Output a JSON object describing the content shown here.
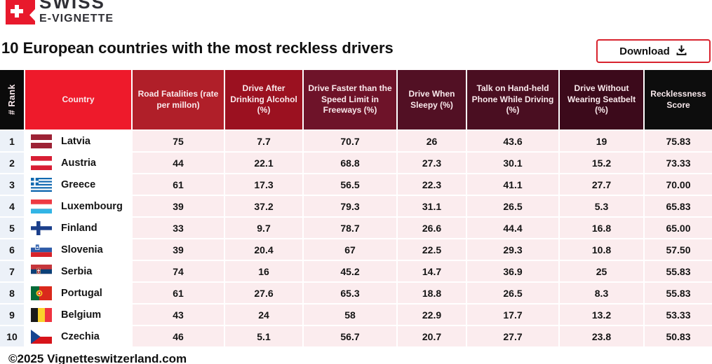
{
  "logo": {
    "line1": "SWISS",
    "line2": "E-VIGNETTE"
  },
  "page_title": "10 European countries with the most reckless drivers",
  "download": {
    "label": "Download"
  },
  "footer": {
    "copyright": "©2025 Vignetteswitzerland.com"
  },
  "colors": {
    "accent_red": "#ee1a2b",
    "button_border": "#d8232e",
    "rank_cell_bg": "#ecf1f8",
    "data_cell_bg": "#fbecee"
  },
  "chart_data": {
    "type": "table",
    "title": "10 European countries with the most reckless drivers",
    "columns": [
      {
        "id": "rank",
        "label": "# Rank",
        "bg": "#0b0b0b"
      },
      {
        "id": "country",
        "label": "Country",
        "bg": "#ee1a2b"
      },
      {
        "id": "fatalities",
        "label": "Road Fatalities (rate per millon)",
        "bg": "#b01f29"
      },
      {
        "id": "alcohol",
        "label": "Drive After Drinking Alcohol (%)",
        "bg": "#9b1120"
      },
      {
        "id": "speed",
        "label": "Drive Faster than the Speed Limit in Freeways (%)",
        "bg": "#6e1329"
      },
      {
        "id": "sleepy",
        "label": "Drive When Sleepy (%)",
        "bg": "#521024"
      },
      {
        "id": "phone",
        "label": "Talk on Hand-held Phone While Driving (%)",
        "bg": "#4a0e21"
      },
      {
        "id": "seatbelt",
        "label": "Drive Without Wearing Seatbelt (%)",
        "bg": "#3c0a1b"
      },
      {
        "id": "score",
        "label": "Recklessness Score",
        "bg": "#0d0d0d"
      }
    ],
    "rows": [
      {
        "rank": "1",
        "country": "Latvia",
        "flag": "lv",
        "values": [
          "75",
          "7.7",
          "70.7",
          "26",
          "43.6",
          "19",
          "75.83"
        ]
      },
      {
        "rank": "2",
        "country": "Austria",
        "flag": "at",
        "values": [
          "44",
          "22.1",
          "68.8",
          "27.3",
          "30.1",
          "15.2",
          "73.33"
        ]
      },
      {
        "rank": "3",
        "country": "Greece",
        "flag": "gr",
        "values": [
          "61",
          "17.3",
          "56.5",
          "22.3",
          "41.1",
          "27.7",
          "70.00"
        ]
      },
      {
        "rank": "4",
        "country": "Luxembourg",
        "flag": "lu",
        "values": [
          "39",
          "37.2",
          "79.3",
          "31.1",
          "26.5",
          "5.3",
          "65.83"
        ]
      },
      {
        "rank": "5",
        "country": "Finland",
        "flag": "fi",
        "values": [
          "33",
          "9.7",
          "78.7",
          "26.6",
          "44.4",
          "16.8",
          "65.00"
        ]
      },
      {
        "rank": "6",
        "country": "Slovenia",
        "flag": "si",
        "values": [
          "39",
          "20.4",
          "67",
          "22.5",
          "29.3",
          "10.8",
          "57.50"
        ]
      },
      {
        "rank": "7",
        "country": "Serbia",
        "flag": "rs",
        "values": [
          "74",
          "16",
          "45.2",
          "14.7",
          "36.9",
          "25",
          "55.83"
        ]
      },
      {
        "rank": "8",
        "country": "Portugal",
        "flag": "pt",
        "values": [
          "61",
          "27.6",
          "65.3",
          "18.8",
          "26.5",
          "8.3",
          "55.83"
        ]
      },
      {
        "rank": "9",
        "country": "Belgium",
        "flag": "be",
        "values": [
          "43",
          "24",
          "58",
          "22.9",
          "17.7",
          "13.2",
          "53.33"
        ]
      },
      {
        "rank": "10",
        "country": "Czechia",
        "flag": "cz",
        "values": [
          "46",
          "5.1",
          "56.7",
          "20.7",
          "27.7",
          "23.8",
          "50.83"
        ]
      }
    ]
  }
}
